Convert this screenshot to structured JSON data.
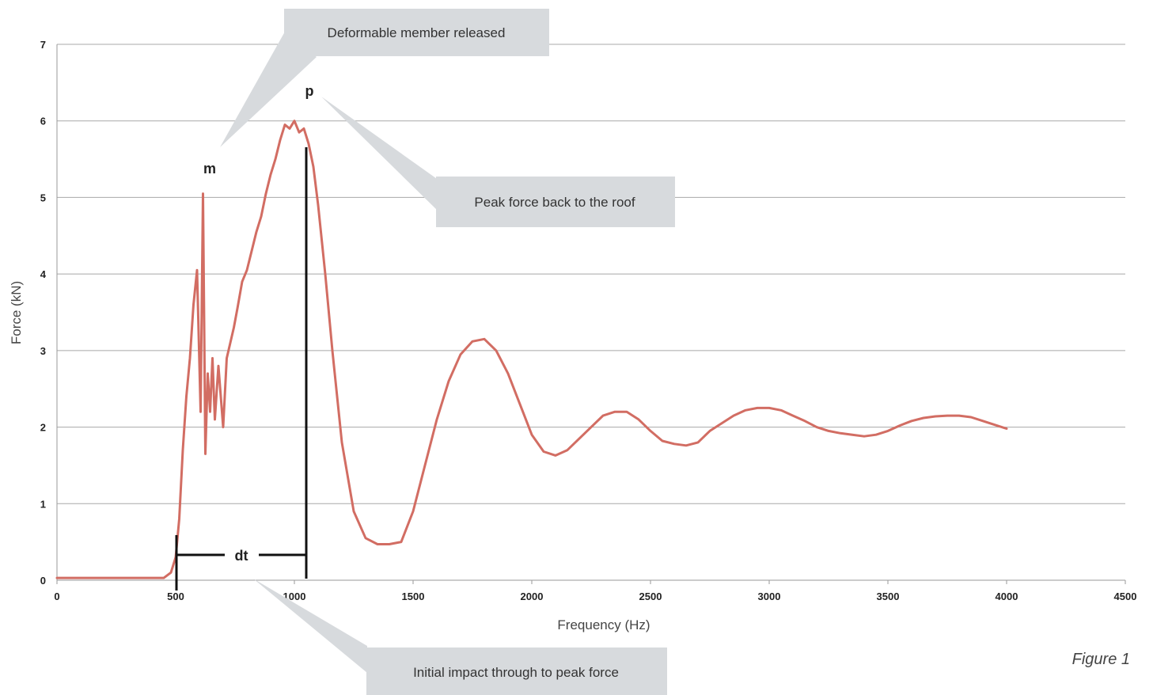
{
  "chart_data": {
    "type": "line",
    "title": "",
    "xlabel": "Frequency (Hz)",
    "ylabel": "Force (kN)",
    "xlim": [
      0,
      4500
    ],
    "ylim": [
      0,
      7
    ],
    "x_ticks": [
      "0",
      "500",
      "1000",
      "1500",
      "2000",
      "2500",
      "3000",
      "3500",
      "4000",
      "4500"
    ],
    "y_ticks": [
      "0",
      "1",
      "2",
      "3",
      "4",
      "5",
      "6",
      "7"
    ],
    "grid": "horizontal",
    "series": [
      {
        "color": "#d26d63",
        "x": [
          0,
          450,
          480,
          500,
          515,
          530,
          545,
          560,
          575,
          590,
          605,
          615,
          625,
          635,
          645,
          655,
          665,
          680,
          700,
          715,
          730,
          745,
          760,
          780,
          800,
          820,
          840,
          860,
          880,
          900,
          920,
          940,
          960,
          980,
          1000,
          1020,
          1040,
          1060,
          1080,
          1100,
          1130,
          1160,
          1200,
          1250,
          1300,
          1350,
          1400,
          1450,
          1500,
          1550,
          1600,
          1650,
          1700,
          1750,
          1800,
          1850,
          1900,
          1950,
          2000,
          2050,
          2100,
          2150,
          2200,
          2250,
          2300,
          2350,
          2400,
          2450,
          2500,
          2550,
          2600,
          2650,
          2700,
          2750,
          2800,
          2850,
          2900,
          2950,
          3000,
          3050,
          3100,
          3150,
          3200,
          3250,
          3300,
          3350,
          3400,
          3450,
          3500,
          3550,
          3600,
          3650,
          3700,
          3750,
          3800,
          3850,
          3900,
          3950,
          4000
        ],
        "y": [
          0.03,
          0.03,
          0.1,
          0.3,
          0.8,
          1.7,
          2.4,
          2.9,
          3.6,
          4.05,
          2.2,
          5.05,
          1.65,
          2.7,
          2.2,
          2.9,
          2.1,
          2.8,
          2.0,
          2.9,
          3.1,
          3.3,
          3.55,
          3.9,
          4.05,
          4.3,
          4.55,
          4.75,
          5.05,
          5.3,
          5.5,
          5.75,
          5.95,
          5.9,
          6.0,
          5.85,
          5.9,
          5.7,
          5.4,
          4.9,
          4.0,
          3.0,
          1.8,
          0.9,
          0.55,
          0.47,
          0.47,
          0.5,
          0.9,
          1.5,
          2.1,
          2.6,
          2.95,
          3.12,
          3.15,
          3.0,
          2.7,
          2.3,
          1.9,
          1.68,
          1.63,
          1.7,
          1.85,
          2.0,
          2.15,
          2.2,
          2.2,
          2.1,
          1.95,
          1.82,
          1.78,
          1.76,
          1.8,
          1.95,
          2.05,
          2.15,
          2.22,
          2.25,
          2.25,
          2.22,
          2.15,
          2.08,
          2.0,
          1.95,
          1.92,
          1.9,
          1.88,
          1.9,
          1.95,
          2.02,
          2.08,
          2.12,
          2.14,
          2.15,
          2.15,
          2.13,
          2.08,
          2.03,
          1.98
        ]
      }
    ],
    "annotations": {
      "m": "m",
      "p": "p",
      "dt": "dt"
    }
  },
  "callouts": {
    "deformable": "Deformable member released",
    "peak": "Peak force back to the roof",
    "initial": "Initial impact through to peak force"
  },
  "figure_label": "Figure 1"
}
